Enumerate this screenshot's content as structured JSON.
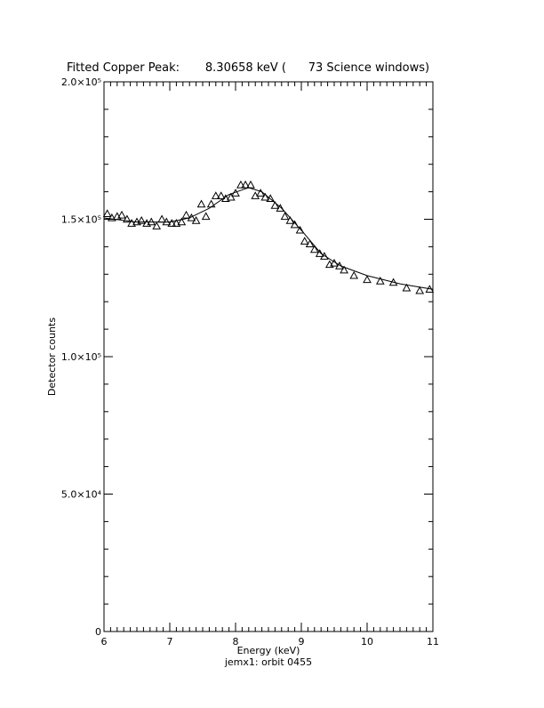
{
  "chart_data": {
    "type": "scatter",
    "title": "Fitted Copper Peak:       8.30658 keV (      73 Science windows)",
    "xlabel": "Energy (keV)",
    "subtitle": "jemx1: orbit 0455",
    "ylabel": "Detector counts",
    "xlim": [
      6,
      11
    ],
    "ylim": [
      0,
      200000
    ],
    "xticks": [
      6,
      7,
      8,
      9,
      10,
      11
    ],
    "yticks": [
      0,
      {
        "value": 50000,
        "label": "5.0×10⁴"
      },
      {
        "value": 100000,
        "label": "1.0×10⁵"
      },
      {
        "value": 150000,
        "label": "1.5×10⁵"
      },
      {
        "value": 200000,
        "label": "2.0×10⁵"
      }
    ],
    "xminorticks": [
      6.1,
      6.2,
      6.3,
      6.4,
      6.5,
      6.6,
      6.7,
      6.8,
      6.9,
      7.1,
      7.2,
      7.3,
      7.4,
      7.5,
      7.6,
      7.7,
      7.8,
      7.9,
      8.1,
      8.2,
      8.3,
      8.4,
      8.5,
      8.6,
      8.7,
      8.8,
      8.9,
      9.1,
      9.2,
      9.3,
      9.4,
      9.5,
      9.6,
      9.7,
      9.8,
      9.9,
      10.1,
      10.2,
      10.3,
      10.4,
      10.5,
      10.6,
      10.7,
      10.8,
      10.9
    ],
    "yminorticks": [
      10000,
      20000,
      30000,
      40000,
      60000,
      70000,
      80000,
      90000,
      110000,
      120000,
      130000,
      140000,
      160000,
      170000,
      180000,
      190000
    ],
    "series": [
      {
        "kind": "points",
        "color": "#000000",
        "x": [
          6.05,
          6.12,
          6.2,
          6.27,
          6.35,
          6.42,
          6.5,
          6.57,
          6.65,
          6.72,
          6.8,
          6.88,
          6.95,
          7.03,
          7.1,
          7.18,
          7.25,
          7.33,
          7.4,
          7.48,
          7.55,
          7.63,
          7.7,
          7.78,
          7.85,
          7.93,
          8.0,
          8.08,
          8.15,
          8.23,
          8.3,
          8.38,
          8.45,
          8.53,
          8.6,
          8.68,
          8.75,
          8.83,
          8.9,
          8.98,
          9.05,
          9.13,
          9.2,
          9.28,
          9.35,
          9.43,
          9.5,
          9.58,
          9.65,
          9.8,
          10.0,
          10.2,
          10.4,
          10.6,
          10.8,
          10.95
        ],
        "values": [
          152000,
          150500,
          151000,
          151500,
          150000,
          148500,
          149000,
          149500,
          148500,
          149000,
          147500,
          150000,
          149000,
          148500,
          148500,
          149000,
          151500,
          150500,
          149500,
          155500,
          151000,
          155500,
          158500,
          158500,
          157500,
          158000,
          159500,
          162500,
          162500,
          162500,
          158500,
          159500,
          158000,
          157500,
          155000,
          154000,
          151000,
          149500,
          148000,
          146000,
          142000,
          141000,
          139000,
          137500,
          136500,
          133500,
          134000,
          133000,
          131500,
          129500,
          128000,
          127500,
          127000,
          125000,
          124000,
          124500
        ]
      },
      {
        "kind": "line",
        "color": "#000000",
        "x": [
          6.0,
          6.5,
          7.0,
          7.3,
          7.6,
          7.9,
          8.2,
          8.4,
          8.7,
          9.0,
          9.3,
          9.6,
          10.0,
          10.5,
          11.0
        ],
        "values": [
          150500,
          149000,
          149000,
          150500,
          154000,
          159000,
          161500,
          160000,
          154000,
          146000,
          137500,
          133000,
          129500,
          126500,
          124500
        ]
      }
    ]
  }
}
